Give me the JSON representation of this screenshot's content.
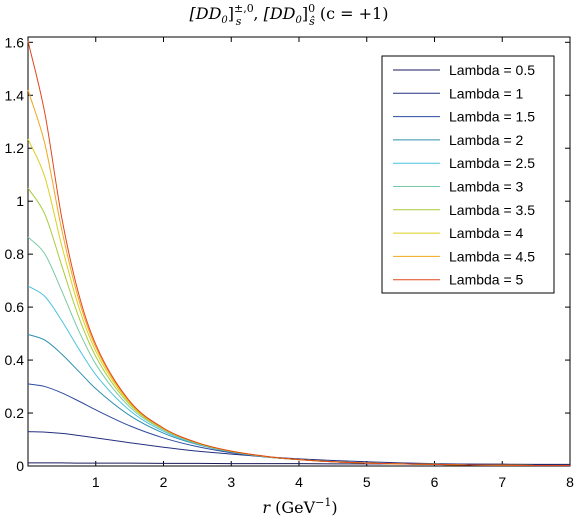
{
  "chart_data": {
    "type": "line",
    "title": {
      "part1": "[DD",
      "part1_sub": "0",
      "part1_close": "]",
      "part1_sup": "±,0",
      "part1_sub2": "s",
      "sep": ", ",
      "part2": "[DD",
      "part2_sub": "0",
      "part2_close": "]",
      "part2_sup": "0",
      "part2_sub2": "ŝ",
      "suffix": " (c = +1)"
    },
    "xlabel": {
      "var": "r",
      "unit": " (GeV",
      "unit_sup": "−1",
      "close": ")"
    },
    "ylabel": "",
    "xlim": [
      0,
      8
    ],
    "ylim": [
      0,
      1.62
    ],
    "xticks": [
      "1",
      "2",
      "3",
      "4",
      "5",
      "6",
      "7",
      "8"
    ],
    "yticks": [
      "0",
      "0.2",
      "0.4",
      "0.6",
      "0.8",
      "1",
      "1.2",
      "1.4",
      "1.6"
    ],
    "legend_position": "top-right",
    "grid": false,
    "x": [
      0,
      0.25,
      0.5,
      0.75,
      1,
      1.5,
      2,
      2.5,
      3,
      3.5,
      4,
      4.5,
      5,
      5.5,
      6,
      6.5,
      7,
      7.5,
      8
    ],
    "series": [
      {
        "name": "Lambda = 0.5",
        "color": "#1a1a5c",
        "values": [
          0.012,
          0.012,
          0.012,
          0.011,
          0.011,
          0.011,
          0.01,
          0.01,
          0.009,
          0.009,
          0.009,
          0.008,
          0.008,
          0.008,
          0.007,
          0.007,
          0.007,
          0.006,
          0.006
        ]
      },
      {
        "name": "Lambda = 1",
        "color": "#24307e",
        "values": [
          0.13,
          0.128,
          0.123,
          0.115,
          0.106,
          0.088,
          0.071,
          0.056,
          0.045,
          0.035,
          0.027,
          0.021,
          0.016,
          0.012,
          0.009,
          0.007,
          0.005,
          0.004,
          0.003
        ]
      },
      {
        "name": "Lambda = 1.5",
        "color": "#2d4ba0",
        "values": [
          0.31,
          0.3,
          0.276,
          0.245,
          0.212,
          0.152,
          0.106,
          0.073,
          0.05,
          0.034,
          0.024,
          0.016,
          0.011,
          0.008,
          0.006,
          0.004,
          0.003,
          0.002,
          0.002
        ]
      },
      {
        "name": "Lambda = 2",
        "color": "#2e8fae",
        "values": [
          0.497,
          0.475,
          0.422,
          0.357,
          0.292,
          0.191,
          0.124,
          0.081,
          0.053,
          0.035,
          0.024,
          0.016,
          0.011,
          0.008,
          0.006,
          0.004,
          0.003,
          0.002,
          0.002
        ]
      },
      {
        "name": "Lambda = 2.5",
        "color": "#4ec3e0",
        "values": [
          0.68,
          0.64,
          0.548,
          0.442,
          0.345,
          0.21,
          0.131,
          0.083,
          0.054,
          0.036,
          0.024,
          0.016,
          0.011,
          0.008,
          0.006,
          0.004,
          0.003,
          0.002,
          0.002
        ]
      },
      {
        "name": "Lambda = 3",
        "color": "#7ac9a4",
        "values": [
          0.865,
          0.8,
          0.66,
          0.51,
          0.385,
          0.223,
          0.136,
          0.085,
          0.055,
          0.036,
          0.024,
          0.016,
          0.011,
          0.008,
          0.006,
          0.004,
          0.003,
          0.002,
          0.002
        ]
      },
      {
        "name": "Lambda = 3.5",
        "color": "#a8cc3c",
        "values": [
          1.05,
          0.95,
          0.755,
          0.562,
          0.414,
          0.232,
          0.139,
          0.086,
          0.055,
          0.036,
          0.024,
          0.016,
          0.011,
          0.008,
          0.006,
          0.004,
          0.003,
          0.002,
          0.002
        ]
      },
      {
        "name": "Lambda = 4",
        "color": "#dccf1e",
        "values": [
          1.235,
          1.09,
          0.83,
          0.6,
          0.434,
          0.238,
          0.141,
          0.087,
          0.056,
          0.036,
          0.024,
          0.016,
          0.011,
          0.008,
          0.006,
          0.004,
          0.003,
          0.002,
          0.002
        ]
      },
      {
        "name": "Lambda = 4.5",
        "color": "#f2a51c",
        "values": [
          1.42,
          1.215,
          0.89,
          0.628,
          0.449,
          0.242,
          0.142,
          0.088,
          0.056,
          0.037,
          0.024,
          0.016,
          0.011,
          0.008,
          0.006,
          0.004,
          0.003,
          0.002,
          0.002
        ]
      },
      {
        "name": "Lambda = 5",
        "color": "#e2461c",
        "values": [
          1.605,
          1.33,
          0.935,
          0.648,
          0.459,
          0.245,
          0.143,
          0.088,
          0.056,
          0.037,
          0.024,
          0.016,
          0.011,
          0.008,
          0.006,
          0.004,
          0.003,
          0.002,
          0.002
        ]
      }
    ]
  }
}
